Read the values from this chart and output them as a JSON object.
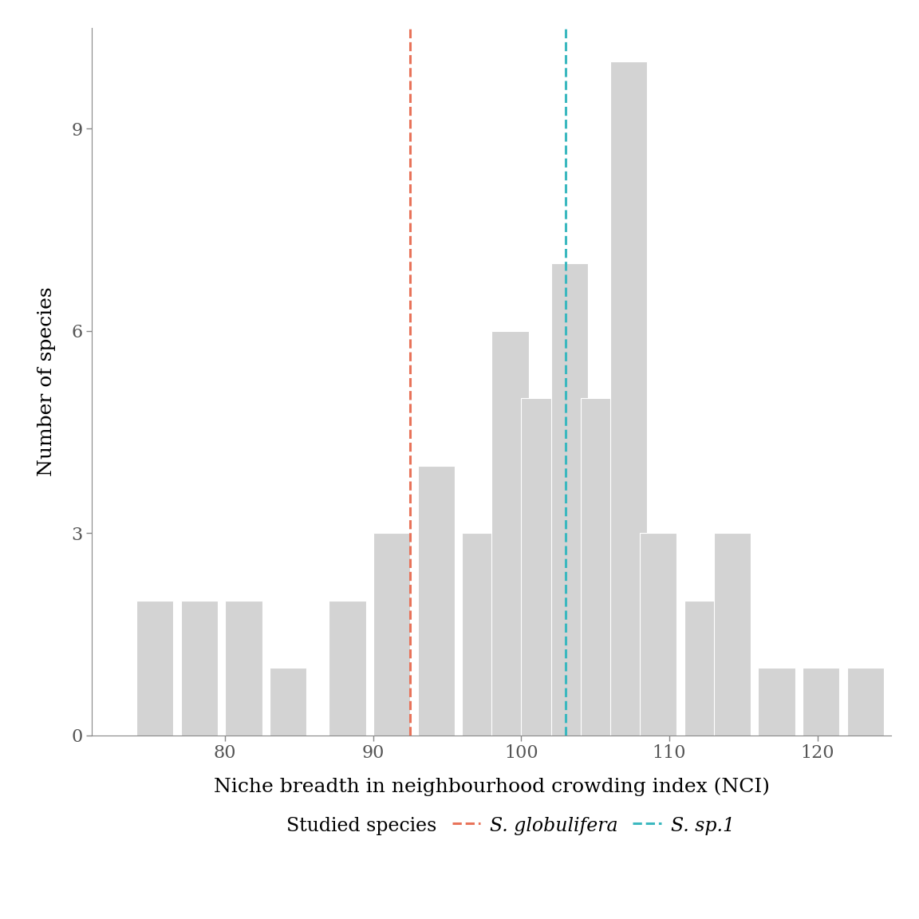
{
  "bins_left": [
    74,
    77,
    80,
    83,
    87,
    90,
    93,
    96,
    98,
    100,
    102,
    104,
    106,
    108,
    111,
    113,
    116,
    119,
    122
  ],
  "counts": [
    2,
    2,
    2,
    1,
    2,
    3,
    4,
    3,
    6,
    5,
    7,
    5,
    10,
    3,
    2,
    3,
    1,
    1,
    1
  ],
  "bin_width": 2.5,
  "bar_color": "#d3d3d3",
  "vline_red": 92.5,
  "vline_cyan": 103.0,
  "vline_red_color": "#E8735A",
  "vline_cyan_color": "#3BB8BF",
  "xlabel": "Niche breadth in neighbourhood crowding index (NCI)",
  "ylabel": "Number of species",
  "yticks": [
    0,
    3,
    6,
    9
  ],
  "xticks": [
    80,
    90,
    100,
    110,
    120
  ],
  "background_color": "white",
  "legend_label_studied": "Studied species",
  "legend_label_red": "S. globulifera",
  "legend_label_cyan": "S. sp.1",
  "xlim": [
    71,
    125
  ],
  "ylim": [
    0,
    10.5
  ],
  "tick_color": "#555555",
  "spine_color": "#888888"
}
